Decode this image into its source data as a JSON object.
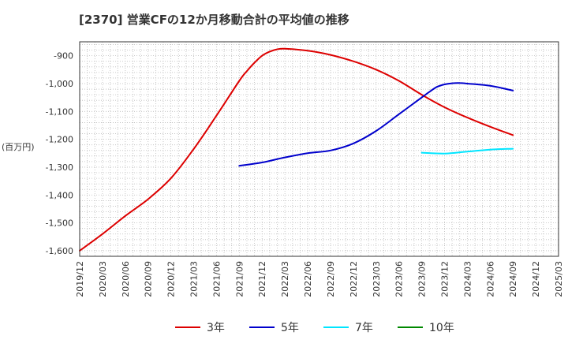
{
  "chart_data": {
    "type": "line",
    "title": "[2370]  営業CFの12か月移動合計の平均値の推移",
    "ylabel": "(百万円)",
    "ylim": [
      -1620,
      -850
    ],
    "yticks": [
      -900,
      -1000,
      -1100,
      -1200,
      -1300,
      -1400,
      -1500,
      -1600
    ],
    "ytick_labels": [
      "-900",
      "-1,000",
      "-1,100",
      "-1,200",
      "-1,300",
      "-1,400",
      "-1,500",
      "-1,600"
    ],
    "xlim": [
      "2019/12",
      "2025/03"
    ],
    "xticks": [
      "2019/12",
      "2020/03",
      "2020/06",
      "2020/09",
      "2020/12",
      "2021/03",
      "2021/06",
      "2021/09",
      "2021/12",
      "2022/03",
      "2022/06",
      "2022/09",
      "2022/12",
      "2023/03",
      "2023/06",
      "2023/09",
      "2023/12",
      "2024/03",
      "2024/06",
      "2024/09",
      "2024/12",
      "2025/03"
    ],
    "grid": true,
    "legend_position": "bottom",
    "series": [
      {
        "name": "3年",
        "color": "#dd0000",
        "x": [
          "2019/12",
          "2020/03",
          "2020/06",
          "2020/09",
          "2020/12",
          "2021/03",
          "2021/06",
          "2021/09",
          "2021/10",
          "2021/11",
          "2021/12",
          "2022/01",
          "2022/02",
          "2022/03",
          "2022/06",
          "2022/09",
          "2022/12",
          "2023/03",
          "2023/06",
          "2023/09",
          "2023/12",
          "2024/03",
          "2024/06",
          "2024/09"
        ],
        "values": [
          -1600,
          -1540,
          -1475,
          -1415,
          -1340,
          -1235,
          -1115,
          -990,
          -955,
          -925,
          -900,
          -885,
          -877,
          -875,
          -882,
          -897,
          -920,
          -950,
          -990,
          -1040,
          -1085,
          -1122,
          -1155,
          -1185
        ]
      },
      {
        "name": "5年",
        "color": "#0000cc",
        "x": [
          "2021/09",
          "2021/12",
          "2022/03",
          "2022/06",
          "2022/09",
          "2022/12",
          "2023/03",
          "2023/06",
          "2023/09",
          "2023/10",
          "2023/11",
          "2023/12",
          "2024/01",
          "2024/02",
          "2024/03",
          "2024/06",
          "2024/09"
        ],
        "values": [
          -1295,
          -1283,
          -1265,
          -1250,
          -1240,
          -1215,
          -1170,
          -1110,
          -1050,
          -1030,
          -1012,
          -1003,
          -999,
          -998,
          -1000,
          -1008,
          -1025
        ]
      },
      {
        "name": "7年",
        "color": "#00e5ff",
        "x": [
          "2023/09",
          "2023/12",
          "2024/03",
          "2024/06",
          "2024/09"
        ],
        "values": [
          -1248,
          -1251,
          -1244,
          -1237,
          -1234
        ]
      },
      {
        "name": "10年",
        "color": "#008800",
        "x": [],
        "values": []
      }
    ]
  }
}
